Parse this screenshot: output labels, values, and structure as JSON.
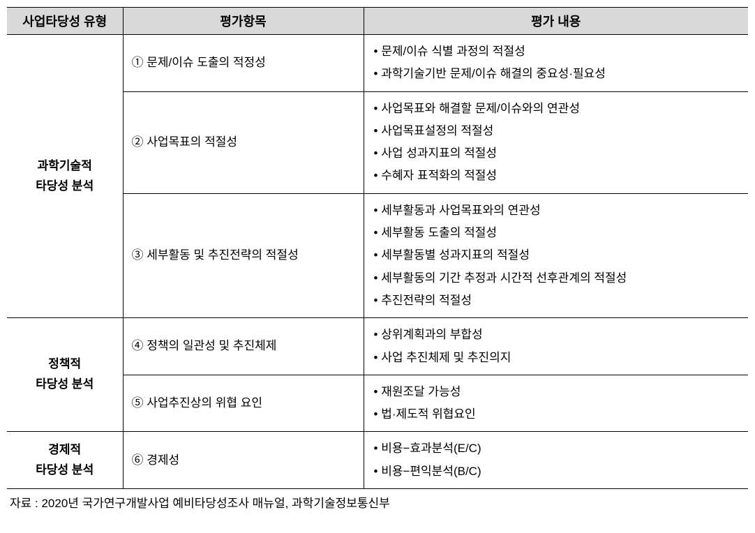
{
  "headers": {
    "col1": "사업타당성 유형",
    "col2": "평가항목",
    "col3": "평가 내용"
  },
  "sections": {
    "scientific": {
      "type_label": "과학기술적\n타당성 분석",
      "rows": {
        "r1": {
          "item": "① 문제/이슈 도출의 적정성",
          "contents": {
            "c0": "문제/이슈 식별 과정의 적절성",
            "c1": "과학기술기반 문제/이슈 해결의 중요성·필요성"
          }
        },
        "r2": {
          "item": "② 사업목표의 적절성",
          "contents": {
            "c0": "사업목표와 해결할 문제/이슈와의 연관성",
            "c1": "사업목표설정의 적절성",
            "c2": "사업 성과지표의 적절성",
            "c3": "수혜자 표적화의 적절성"
          }
        },
        "r3": {
          "item": "③ 세부활동 및 추진전략의 적절성",
          "contents": {
            "c0": "세부활동과 사업목표와의 연관성",
            "c1": "세부활동 도출의 적절성",
            "c2": "세부활동별 성과지표의 적절성",
            "c3": "세부활동의 기간 추정과 시간적 선후관계의 적절성",
            "c4": "추진전략의 적절성"
          }
        }
      }
    },
    "policy": {
      "type_label": "정책적\n타당성 분석",
      "rows": {
        "r1": {
          "item": "④ 정책의 일관성 및 추진체제",
          "contents": {
            "c0": "상위계획과의 부합성",
            "c1": "사업 추진체제 및 추진의지"
          }
        },
        "r2": {
          "item": "⑤ 사업추진상의 위협 요인",
          "contents": {
            "c0": "재원조달 가능성",
            "c1": "법·제도적 위협요인"
          }
        }
      }
    },
    "economic": {
      "type_label": "경제적\n타당성 분석",
      "rows": {
        "r1": {
          "item": "⑥ 경제성",
          "contents": {
            "c0": "비용−효과분석(E/C)",
            "c1": "비용−편익분석(B/C)"
          }
        }
      }
    }
  },
  "source_note": "자료 : 2020년 국가연구개발사업 예비타당성조사 매뉴얼, 과학기술정보통신부"
}
